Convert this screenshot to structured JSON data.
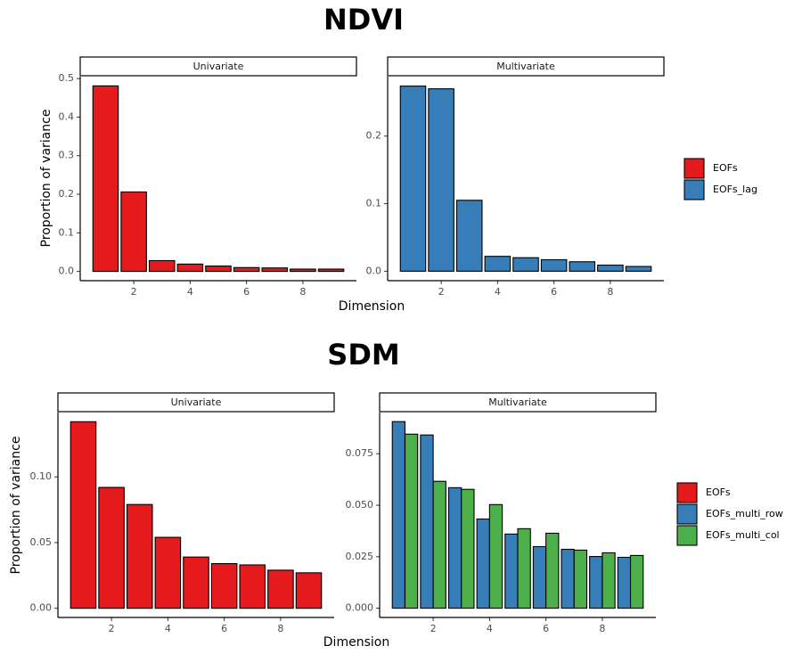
{
  "chart_data": [
    {
      "type": "bar",
      "title": "NDVI",
      "x_label": "Dimension",
      "y_label": "Proportion of variance",
      "panels": [
        {
          "title": "Univariate",
          "x": [
            1,
            2,
            3,
            4,
            5,
            6,
            7,
            8,
            9
          ],
          "xlim": [
            0.1,
            9.9
          ],
          "xticks": [
            2,
            4,
            6,
            8
          ],
          "ylim": [
            -0.024,
            0.505
          ],
          "yticks": [
            {
              "value": 0,
              "label": "0.0"
            },
            0.1,
            0.2,
            0.3,
            0.4,
            0.5
          ],
          "series": [
            {
              "name": "EOFs",
              "color": "#e41a1c",
              "values": [
                0.481,
                0.206,
                0.028,
                0.019,
                0.014,
                0.01,
                0.009,
                0.006,
                0.006
              ]
            }
          ]
        },
        {
          "title": "Multivariate",
          "x": [
            1,
            2,
            3,
            4,
            5,
            6,
            7,
            8,
            9
          ],
          "xlim": [
            0.1,
            9.9
          ],
          "xticks": [
            2,
            4,
            6,
            8
          ],
          "ylim": [
            -0.014,
            0.288
          ],
          "yticks": [
            {
              "value": 0,
              "label": "0.0"
            },
            0.1,
            0.2
          ],
          "series": [
            {
              "name": "EOFs_lag",
              "color": "#377eb8",
              "values": [
                0.274,
                0.27,
                0.105,
                0.022,
                0.02,
                0.017,
                0.014,
                0.009,
                0.007
              ]
            }
          ]
        }
      ]
    },
    {
      "type": "bar",
      "title": "SDM",
      "x_label": "Dimension",
      "y_label": "Proportion of variance",
      "panels": [
        {
          "title": "Univariate",
          "x": [
            1,
            2,
            3,
            4,
            5,
            6,
            7,
            8,
            9
          ],
          "xlim": [
            0.1,
            9.9
          ],
          "xticks": [
            2,
            4,
            6,
            8
          ],
          "ylim": [
            -0.007,
            0.149
          ],
          "yticks": [
            {
              "value": 0,
              "label": "0.00"
            },
            0.05,
            {
              "value": 0.1,
              "label": "0.10"
            }
          ],
          "series": [
            {
              "name": "EOFs",
              "color": "#e41a1c",
              "values": [
                0.142,
                0.092,
                0.079,
                0.054,
                0.039,
                0.034,
                0.033,
                0.029,
                0.027
              ]
            }
          ]
        },
        {
          "title": "Multivariate",
          "x": [
            1,
            2,
            3,
            4,
            5,
            6,
            7,
            8,
            9
          ],
          "xlim": [
            0.1,
            9.9
          ],
          "xticks": [
            2,
            4,
            6,
            8
          ],
          "ylim": [
            -0.0045,
            0.095
          ],
          "yticks": [
            {
              "value": 0,
              "label": "0.000"
            },
            0.025,
            {
              "value": 0.05,
              "label": "0.050"
            },
            0.075
          ],
          "series": [
            {
              "name": "EOFs_multi_row",
              "color": "#377eb8",
              "values": [
                0.0906,
                0.0841,
                0.0585,
                0.0433,
                0.036,
                0.0299,
                0.0286,
                0.0251,
                0.0247
              ]
            },
            {
              "name": "EOFs_multi_col",
              "color": "#4daf4a",
              "values": [
                0.0845,
                0.0616,
                0.0577,
                0.0503,
                0.0386,
                0.0364,
                0.0282,
                0.0269,
                0.0256
              ]
            }
          ]
        }
      ]
    }
  ]
}
